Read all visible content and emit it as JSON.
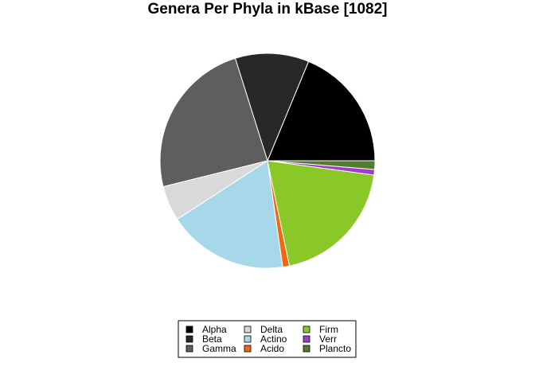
{
  "chart_data": {
    "type": "pie",
    "title": "Genera Per Phyla in kBase [1082]",
    "categories": [
      "Alpha",
      "Beta",
      "Gamma",
      "Delta",
      "Actino",
      "Acido",
      "Firm",
      "Verr",
      "Plancto"
    ],
    "values": [
      203,
      120,
      260,
      57,
      196,
      11,
      212,
      9,
      14
    ],
    "colors": [
      "#000000",
      "#282828",
      "#5e5e5e",
      "#d9d9d9",
      "#a7d8ea",
      "#ee6a10",
      "#8ac828",
      "#a03cc8",
      "#557b2e"
    ],
    "slice_border_color": "#ffffff",
    "start_angle_deg": 0,
    "direction": "counterclockwise",
    "legend_position": "bottom",
    "legend_columns": 3
  }
}
